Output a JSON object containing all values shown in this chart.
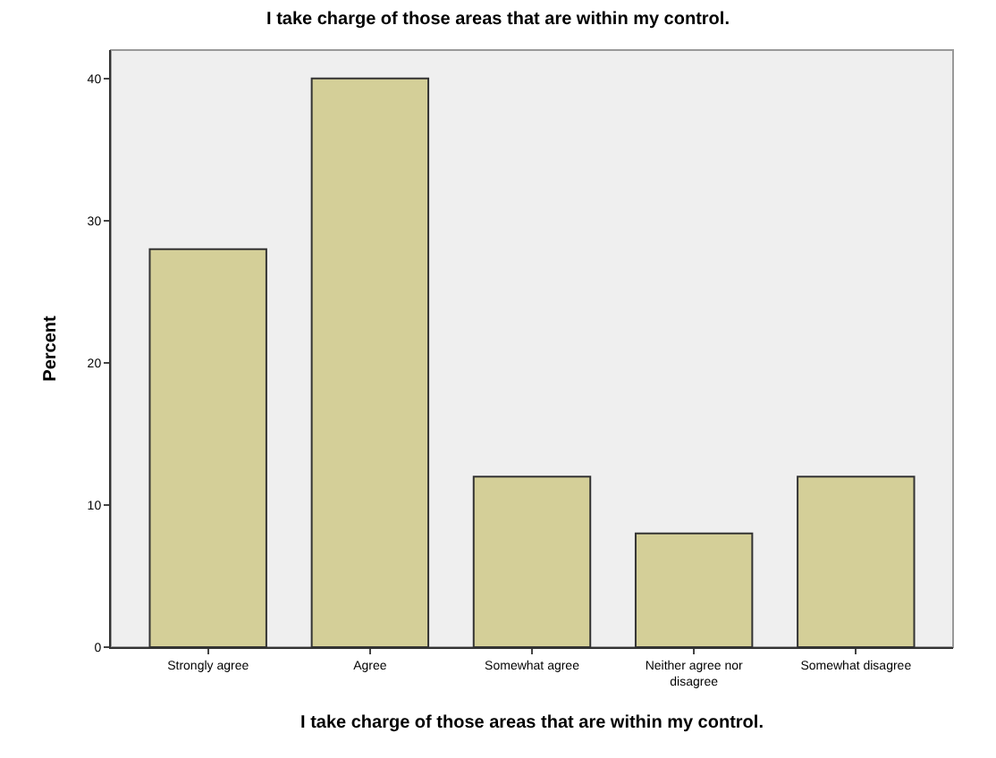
{
  "chart_data": {
    "type": "bar",
    "title": "I take charge of those areas that are within my control.",
    "xlabel": "I take charge of those areas that are within my control.",
    "ylabel": "Percent",
    "categories": [
      "Strongly agree",
      "Agree",
      "Somewhat agree",
      "Neither agree nor disagree",
      "Somewhat disagree"
    ],
    "values": [
      28,
      40,
      12,
      8,
      12
    ],
    "color": "#d4cf98",
    "ylim": [
      0,
      42
    ],
    "yticks": [
      0,
      10,
      20,
      30,
      40
    ]
  }
}
